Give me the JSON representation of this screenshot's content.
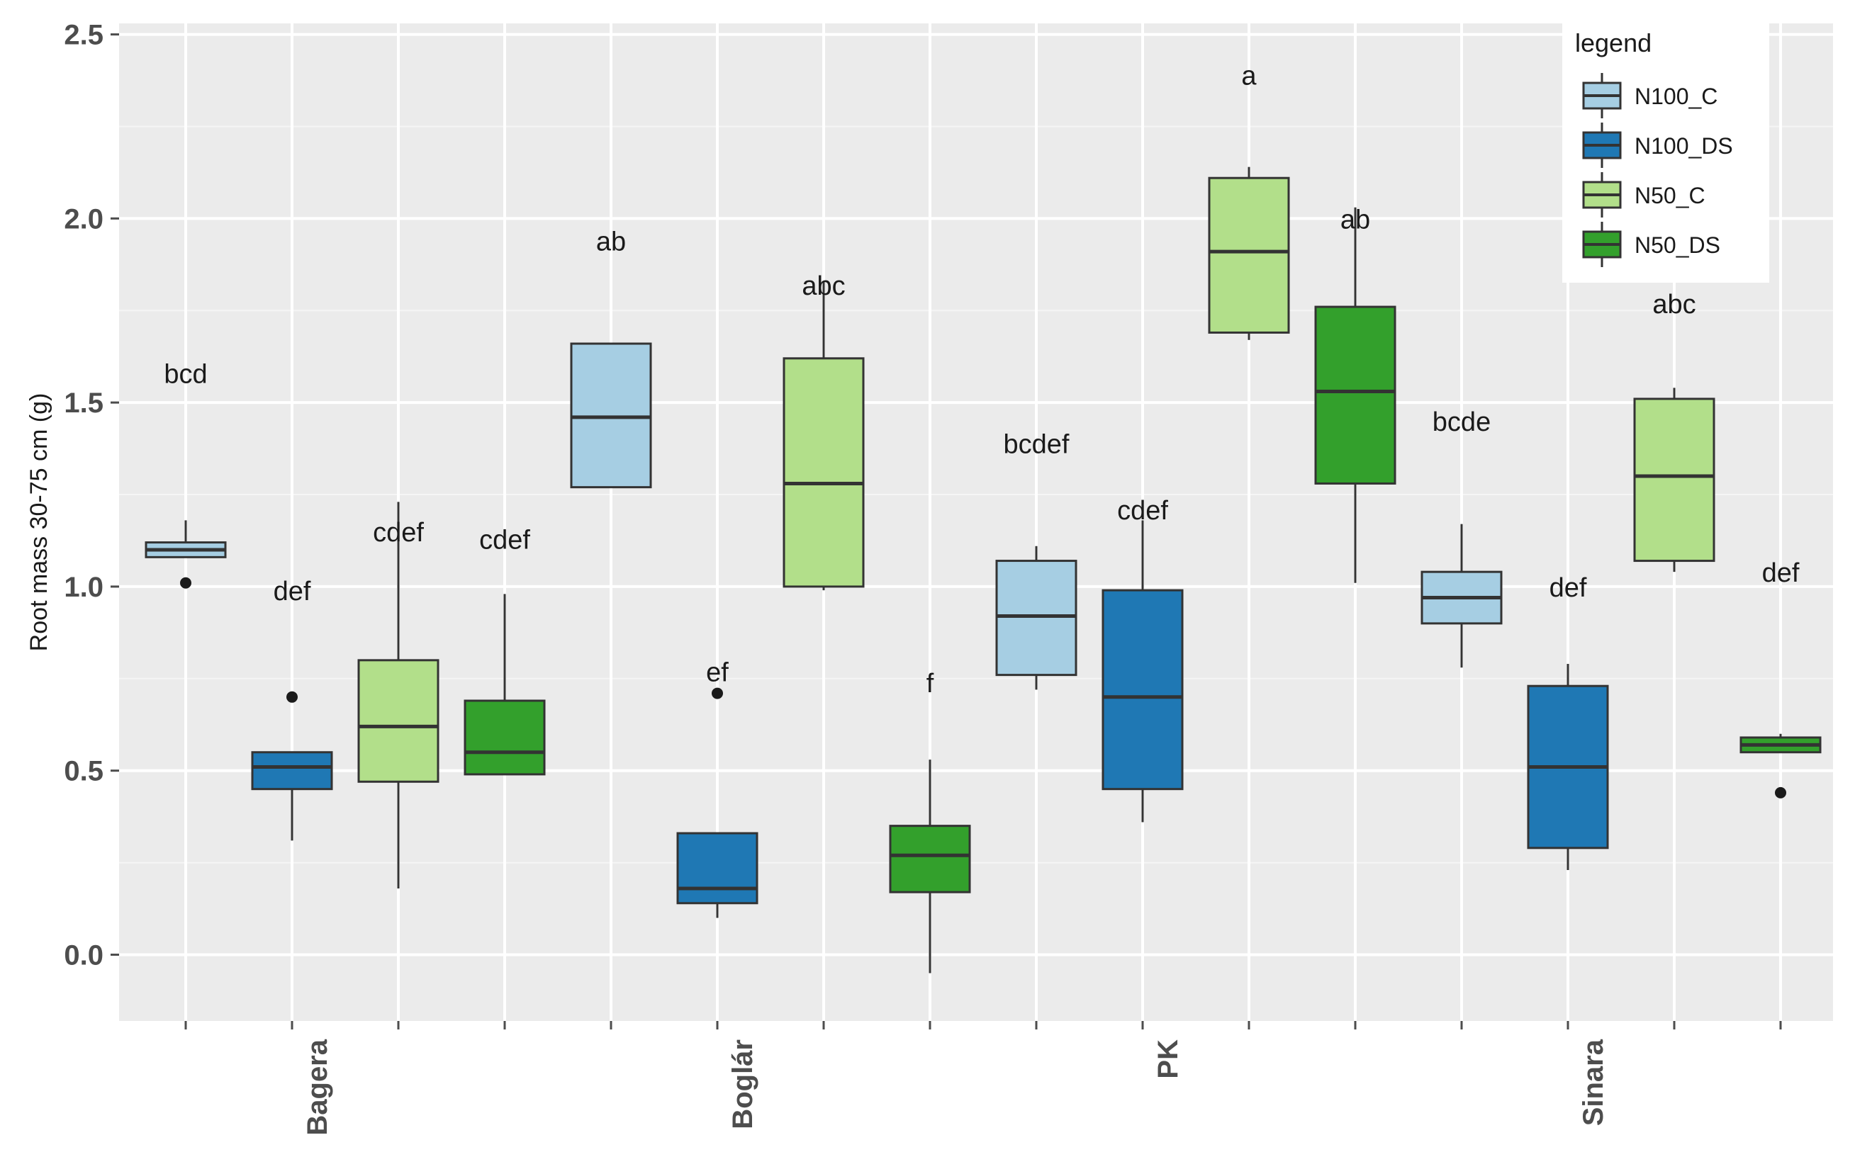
{
  "chart_data": {
    "type": "boxplot",
    "title": "",
    "xlabel": "",
    "ylabel": "Root mass 30-75 cm (g)",
    "ylim": [
      -0.18,
      2.53
    ],
    "yticks": [
      0.0,
      0.5,
      1.0,
      1.5,
      2.0,
      2.5
    ],
    "ytick_labels": [
      "0.0",
      "0.5",
      "1.0",
      "1.5",
      "2.0",
      "2.5"
    ],
    "groups": [
      "Bagera",
      "Boglár",
      "PK",
      "Sinara"
    ],
    "legend": {
      "title": "legend",
      "position": "top-right",
      "entries": [
        {
          "name": "N100_C",
          "color": "#a6cee3"
        },
        {
          "name": "N100_DS",
          "color": "#1f78b4"
        },
        {
          "name": "N50_C",
          "color": "#b2df8a"
        },
        {
          "name": "N50_DS",
          "color": "#33a02c"
        }
      ]
    },
    "boxes": [
      {
        "group": "Bagera",
        "series": "N100_C",
        "whisker_low": 1.08,
        "q1": 1.08,
        "median": 1.1,
        "q3": 1.12,
        "whisker_high": 1.18,
        "outliers": [
          1.01
        ],
        "letters": "bcd",
        "letters_y": 1.58
      },
      {
        "group": "Bagera",
        "series": "N100_DS",
        "whisker_low": 0.31,
        "q1": 0.45,
        "median": 0.51,
        "q3": 0.55,
        "whisker_high": 0.55,
        "outliers": [
          0.7
        ],
        "letters": "def",
        "letters_y": 0.99
      },
      {
        "group": "Bagera",
        "series": "N50_C",
        "whisker_low": 0.18,
        "q1": 0.47,
        "median": 0.62,
        "q3": 0.8,
        "whisker_high": 1.23,
        "outliers": [],
        "letters": "cdef",
        "letters_y": 1.15
      },
      {
        "group": "Bagera",
        "series": "N50_DS",
        "whisker_low": 0.49,
        "q1": 0.49,
        "median": 0.55,
        "q3": 0.69,
        "whisker_high": 0.98,
        "outliers": [],
        "letters": "cdef",
        "letters_y": 1.13
      },
      {
        "group": "Boglár",
        "series": "N100_C",
        "whisker_low": 1.27,
        "q1": 1.27,
        "median": 1.46,
        "q3": 1.66,
        "whisker_high": 1.66,
        "outliers": [],
        "letters": "ab",
        "letters_y": 1.94
      },
      {
        "group": "Boglár",
        "series": "N100_DS",
        "whisker_low": 0.1,
        "q1": 0.14,
        "median": 0.18,
        "q3": 0.33,
        "whisker_high": 0.33,
        "outliers": [
          0.71
        ],
        "letters": "ef",
        "letters_y": 0.77
      },
      {
        "group": "Boglár",
        "series": "N50_C",
        "whisker_low": 0.99,
        "q1": 1.0,
        "median": 1.28,
        "q3": 1.62,
        "whisker_high": 1.83,
        "outliers": [],
        "letters": "abc",
        "letters_y": 1.82
      },
      {
        "group": "Boglár",
        "series": "N50_DS",
        "whisker_low": -0.05,
        "q1": 0.17,
        "median": 0.27,
        "q3": 0.35,
        "whisker_high": 0.53,
        "outliers": [],
        "letters": "f",
        "letters_y": 0.74
      },
      {
        "group": "PK",
        "series": "N100_C",
        "whisker_low": 0.72,
        "q1": 0.76,
        "median": 0.92,
        "q3": 1.07,
        "whisker_high": 1.11,
        "outliers": [],
        "letters": "bcdef",
        "letters_y": 1.39
      },
      {
        "group": "PK",
        "series": "N100_DS",
        "whisker_low": 0.36,
        "q1": 0.45,
        "median": 0.7,
        "q3": 0.99,
        "whisker_high": 1.18,
        "outliers": [],
        "letters": "cdef",
        "letters_y": 1.21
      },
      {
        "group": "PK",
        "series": "N50_C",
        "whisker_low": 1.67,
        "q1": 1.69,
        "median": 1.91,
        "q3": 2.11,
        "whisker_high": 2.14,
        "outliers": [],
        "letters": "a",
        "letters_y": 2.39
      },
      {
        "group": "PK",
        "series": "N50_DS",
        "whisker_low": 1.01,
        "q1": 1.28,
        "median": 1.53,
        "q3": 1.76,
        "whisker_high": 2.03,
        "outliers": [],
        "letters": "ab",
        "letters_y": 2.0
      },
      {
        "group": "Sinara",
        "series": "N100_C",
        "whisker_low": 0.78,
        "q1": 0.9,
        "median": 0.97,
        "q3": 1.04,
        "whisker_high": 1.17,
        "outliers": [],
        "letters": "bcde",
        "letters_y": 1.45
      },
      {
        "group": "Sinara",
        "series": "N100_DS",
        "whisker_low": 0.23,
        "q1": 0.29,
        "median": 0.51,
        "q3": 0.73,
        "whisker_high": 0.79,
        "outliers": [],
        "letters": "def",
        "letters_y": 1.0
      },
      {
        "group": "Sinara",
        "series": "N50_C",
        "whisker_low": 1.04,
        "q1": 1.07,
        "median": 1.3,
        "q3": 1.51,
        "whisker_high": 1.54,
        "outliers": [],
        "letters": "abc",
        "letters_y": 1.77
      },
      {
        "group": "Sinara",
        "series": "N50_DS",
        "whisker_low": 0.55,
        "q1": 0.55,
        "median": 0.57,
        "q3": 0.59,
        "whisker_high": 0.6,
        "outliers": [
          0.44
        ],
        "letters": "def",
        "letters_y": 1.04
      }
    ]
  }
}
